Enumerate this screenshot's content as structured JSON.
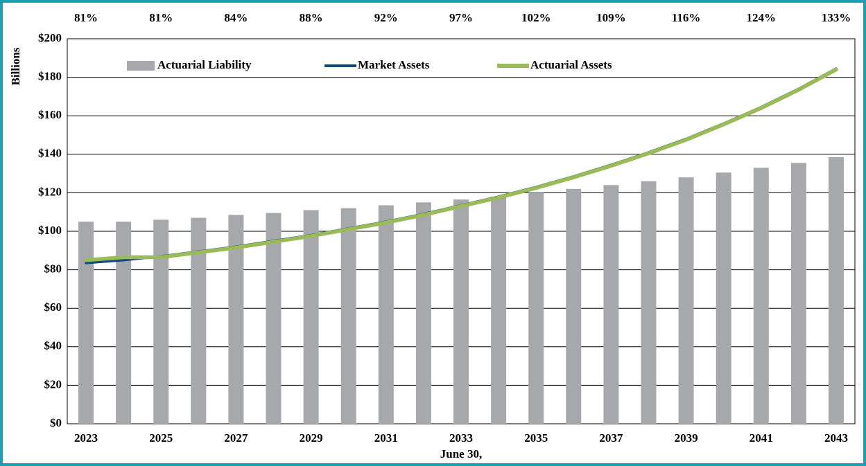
{
  "chart_data": {
    "type": "bar",
    "y_axis_label": "Billions",
    "x_axis_label": "June 30,",
    "categories": [
      "2023",
      null,
      "2025",
      null,
      "2027",
      null,
      "2029",
      null,
      "2031",
      null,
      "2033",
      null,
      "2035",
      null,
      "2037",
      null,
      "2039",
      null,
      "2041",
      null,
      "2043"
    ],
    "top_labels": [
      "81%",
      null,
      "81%",
      null,
      "84%",
      null,
      "88%",
      null,
      "92%",
      null,
      "97%",
      null,
      "102%",
      null,
      "109%",
      null,
      "116%",
      null,
      "124%",
      null,
      "133%"
    ],
    "series": [
      {
        "name": "Actuarial Liability",
        "type": "bar",
        "color": "#a6a8ab",
        "values": [
          105,
          105,
          106,
          107,
          108.5,
          109.5,
          111,
          112,
          113.5,
          115,
          116.5,
          118,
          120,
          122,
          124,
          126,
          128,
          130.5,
          133,
          135.5,
          138.5
        ]
      },
      {
        "name": "Market Assets",
        "type": "line",
        "color": "#174a7c",
        "values": [
          83.5,
          85,
          87,
          89.5,
          92,
          95,
          98,
          101.5,
          105,
          109,
          113.5,
          118,
          123,
          128.5,
          134.5,
          141,
          148,
          156,
          164.5,
          174,
          184.5
        ]
      },
      {
        "name": "Actuarial Assets",
        "type": "line",
        "color": "#9bbb59",
        "values": [
          85,
          86.5,
          86.5,
          89,
          91.5,
          94.5,
          97.5,
          101,
          104.5,
          108.5,
          113,
          117.5,
          122.5,
          128,
          134,
          140.5,
          147.5,
          155.5,
          164,
          173.5,
          184
        ]
      }
    ],
    "ylim": [
      0,
      200
    ],
    "yticks": [
      {
        "value": 0,
        "label": "$0"
      },
      {
        "value": 20,
        "label": "$20"
      },
      {
        "value": 40,
        "label": "$40"
      },
      {
        "value": 60,
        "label": "$60"
      },
      {
        "value": 80,
        "label": "$80"
      },
      {
        "value": 100,
        "label": "$100"
      },
      {
        "value": 120,
        "label": "$120"
      },
      {
        "value": 140,
        "label": "$140"
      },
      {
        "value": 160,
        "label": "$160"
      },
      {
        "value": 180,
        "label": "$180"
      },
      {
        "value": 200,
        "label": "$200"
      }
    ],
    "grid": true,
    "legend": "upper left"
  }
}
